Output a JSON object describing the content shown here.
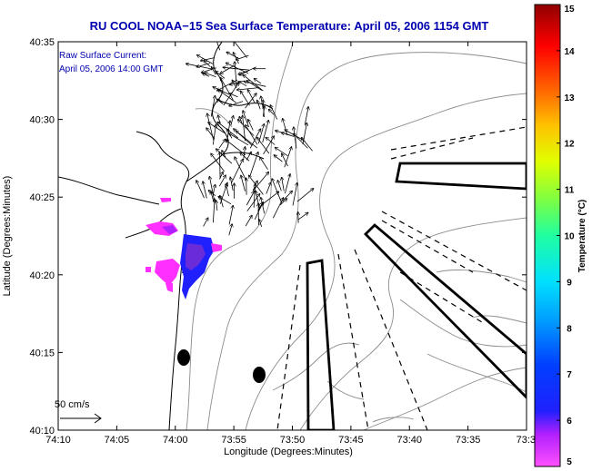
{
  "title": "RU COOL  NOAA−15  Sea Surface Temperature:  April 05, 2006 1154 GMT",
  "inset": {
    "line1": "Raw Surface Current:",
    "line2": "April 05, 2006 14:00 GMT"
  },
  "scale_label": "50 cm/s",
  "axes": {
    "xlabel": "Longitude (Degrees:Minutes)",
    "ylabel": "Latitude (Degrees:Minutes)",
    "xticks": [
      "74:10",
      "74:05",
      "74:00",
      "73:55",
      "73:50",
      "73:45",
      "73:40",
      "73:35",
      "73:3"
    ],
    "yticks": [
      "40:35",
      "40:30",
      "40:25",
      "40:20",
      "40:15",
      "40:10"
    ]
  },
  "colorbar": {
    "label": "Temperature (°C)",
    "min": 5,
    "max": 15,
    "ticks": [
      "15",
      "14",
      "13",
      "12",
      "11",
      "10",
      "9",
      "8",
      "7",
      "6",
      "5"
    ]
  },
  "chart_data": {
    "type": "map",
    "lon_range_min": [
      -74.1667,
      -73.5
    ],
    "lat_range_min": [
      40.1667,
      40.5833
    ],
    "grid": false,
    "colors": {
      "frame": "#000000",
      "coastline": "#000000",
      "bathymetry": "#8c8c8c",
      "vectors": "#000000",
      "title": "#0000b0",
      "sst_cold": "#2020ff",
      "sst_coldest": "#ff30ff"
    }
  }
}
